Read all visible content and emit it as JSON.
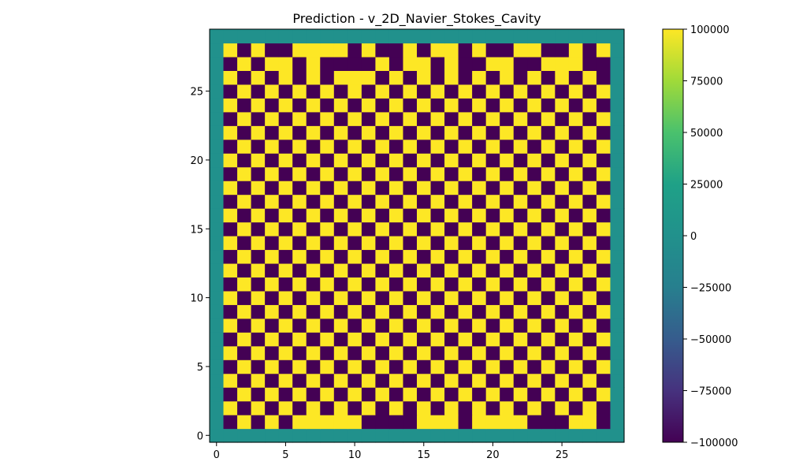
{
  "chart_data": {
    "type": "heatmap",
    "title": "Prediction - v_2D_Navier_Stokes_Cavity",
    "xlabel": "",
    "ylabel": "",
    "xlim": [
      -0.5,
      29.5
    ],
    "ylim": [
      -0.5,
      29.5
    ],
    "x_ticks": [
      0,
      5,
      10,
      15,
      20,
      25
    ],
    "y_ticks": [
      0,
      5,
      10,
      15,
      20,
      25
    ],
    "grid": false,
    "colormap": "viridis",
    "colorbar": {
      "min": -100000,
      "max": 100000,
      "ticks": [
        100000,
        75000,
        50000,
        25000,
        0,
        -25000,
        -50000,
        -75000,
        -100000
      ],
      "tick_labels": [
        "100000",
        "75000",
        "50000",
        "25000",
        "0",
        "−25000",
        "−50000",
        "−75000",
        "−100000"
      ]
    },
    "boundary_value": 0,
    "grid_size": 30,
    "interior_rows_top_to_bottom": [
      "1010011110100101101001100101",
      "0101101000010110100110011100",
      "1010101011101010101010101010",
      "0101010101010101010101010101",
      "1010101010101010101010101010",
      "0101010101010101010101010101",
      "1010101010101010101010101010",
      "0101010101010101010101010101",
      "1010101010101010101010101010",
      "0101010101010101010101010101",
      "1010101010101010101010101010",
      "0101010101010101010101010101",
      "1010101010101010101010101010",
      "0101010101010101010101010101",
      "1010101010101010101010101010",
      "0101010101010101010101010101",
      "1010101010101010101010101010",
      "0101010101010101010101010101",
      "1010101010101010101010101010",
      "0101010101010101010101010101",
      "1010101010101010101010101010",
      "0101010101010101010101010101",
      "1010101010101010101010101010",
      "0101010101010101010101010101",
      "1010101010101010101010101010",
      "0101010101010101010101010101",
      "1010101010101010101010101010",
      "0101011111000011101111000110"
    ],
    "cell_value_high": 100000,
    "cell_value_low": -100000
  },
  "colors": {
    "high": "#fde725",
    "low": "#440154",
    "boundary": "#21918c"
  }
}
